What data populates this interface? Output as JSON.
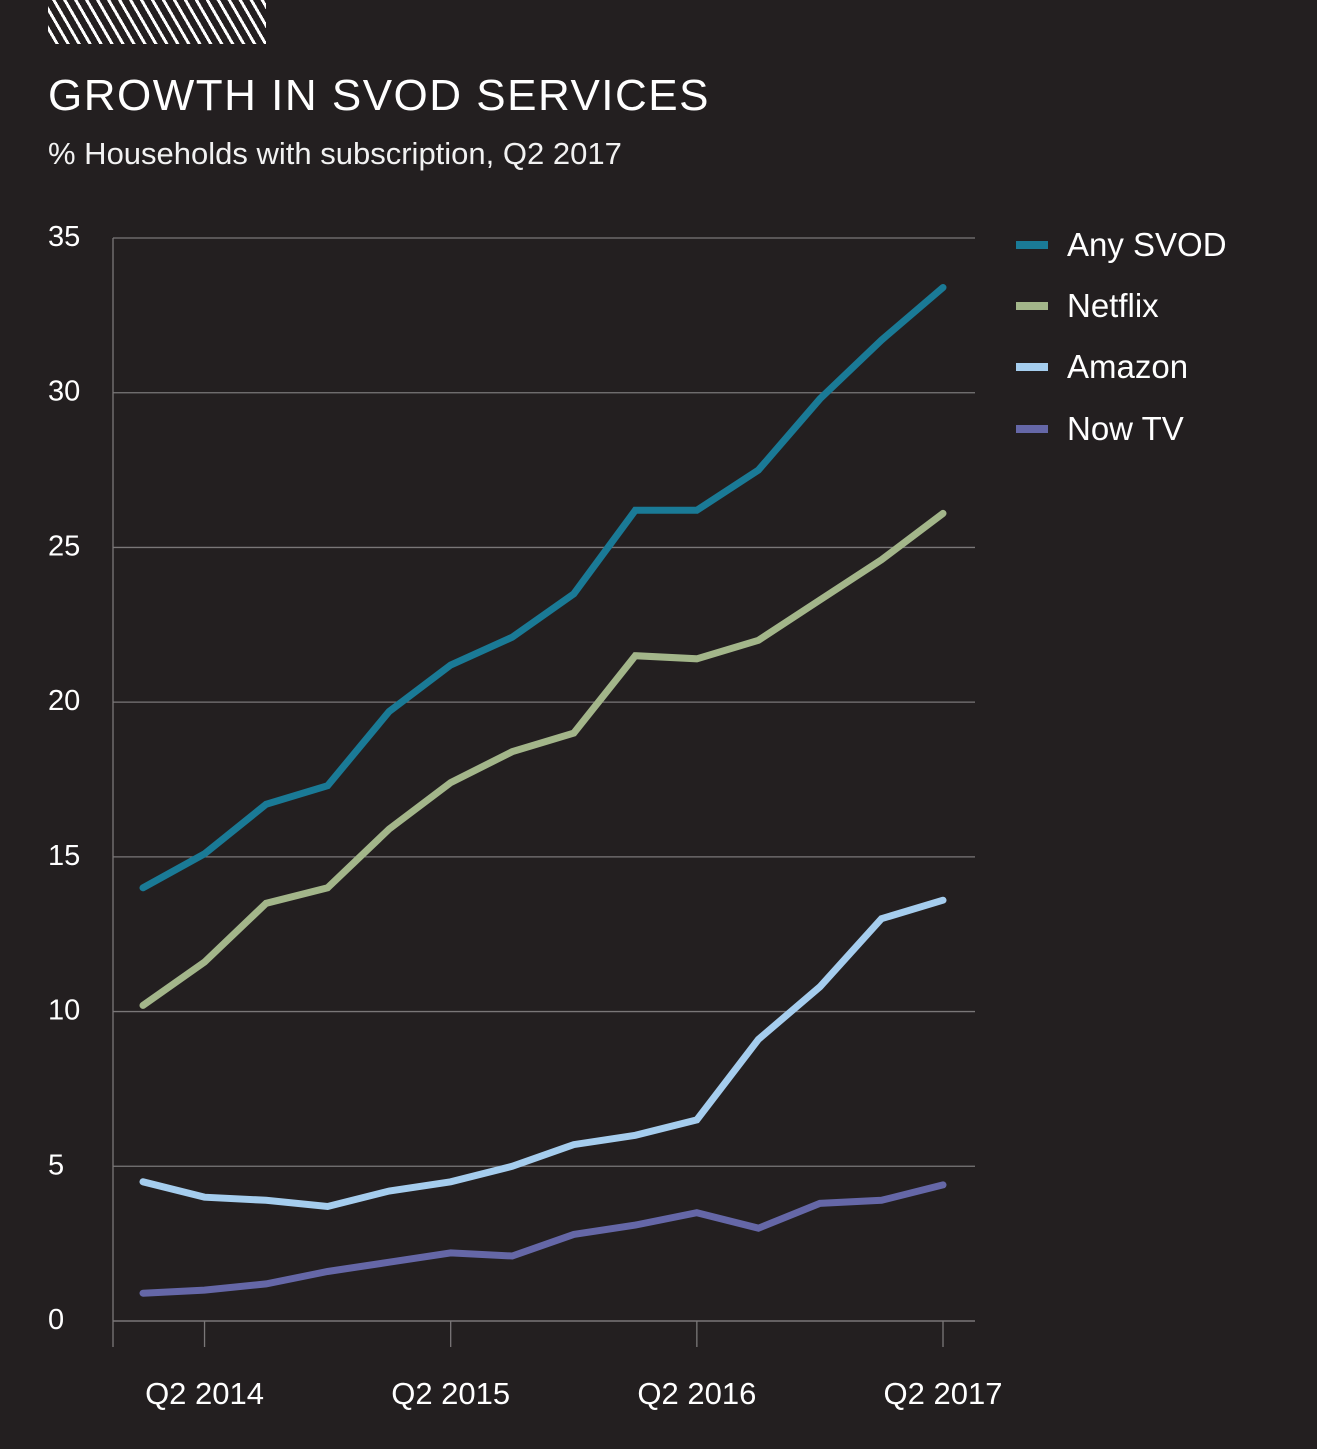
{
  "header": {
    "title": "GROWTH IN SVOD SERVICES",
    "subtitle": "% Households with subscription, Q2 2017"
  },
  "chart_data": {
    "type": "line",
    "title": "GROWTH IN SVOD SERVICES",
    "subtitle": "% Households with subscription, Q2 2017",
    "xlabel": "",
    "ylabel": "",
    "ylim": [
      0,
      35
    ],
    "yticks": [
      0,
      5,
      10,
      15,
      20,
      25,
      30,
      35
    ],
    "grid": true,
    "legend_position": "right",
    "x": [
      "Q1 2014",
      "Q2 2014",
      "Q3 2014",
      "Q4 2014",
      "Q1 2015",
      "Q2 2015",
      "Q3 2015",
      "Q4 2015",
      "Q1 2016",
      "Q2 2016",
      "Q3 2016",
      "Q4 2016",
      "Q1 2017",
      "Q2 2017"
    ],
    "xtick_labels": [
      {
        "index": 1,
        "label": "Q2 2014"
      },
      {
        "index": 5,
        "label": "Q2 2015"
      },
      {
        "index": 9,
        "label": "Q2 2016"
      },
      {
        "index": 13,
        "label": "Q2 2017"
      }
    ],
    "series": [
      {
        "name": "Any SVOD",
        "color": "#1a7a96",
        "values": [
          14.0,
          15.1,
          16.7,
          17.3,
          19.7,
          21.2,
          22.1,
          23.5,
          26.2,
          26.2,
          27.5,
          29.8,
          31.7,
          33.4
        ]
      },
      {
        "name": "Netflix",
        "color": "#a3b68a",
        "values": [
          10.2,
          11.6,
          13.5,
          14.0,
          15.9,
          17.4,
          18.4,
          19.0,
          21.5,
          21.4,
          22.0,
          23.3,
          24.6,
          26.1
        ]
      },
      {
        "name": "Amazon",
        "color": "#a5cdee",
        "values": [
          4.5,
          4.0,
          3.9,
          3.7,
          4.2,
          4.5,
          5.0,
          5.7,
          6.0,
          6.5,
          9.1,
          10.8,
          13.0,
          13.6
        ]
      },
      {
        "name": "Now TV",
        "color": "#6567a7",
        "values": [
          0.9,
          1.0,
          1.2,
          1.6,
          1.9,
          2.2,
          2.1,
          2.8,
          3.1,
          3.5,
          3.0,
          3.8,
          3.9,
          4.4
        ]
      }
    ]
  }
}
